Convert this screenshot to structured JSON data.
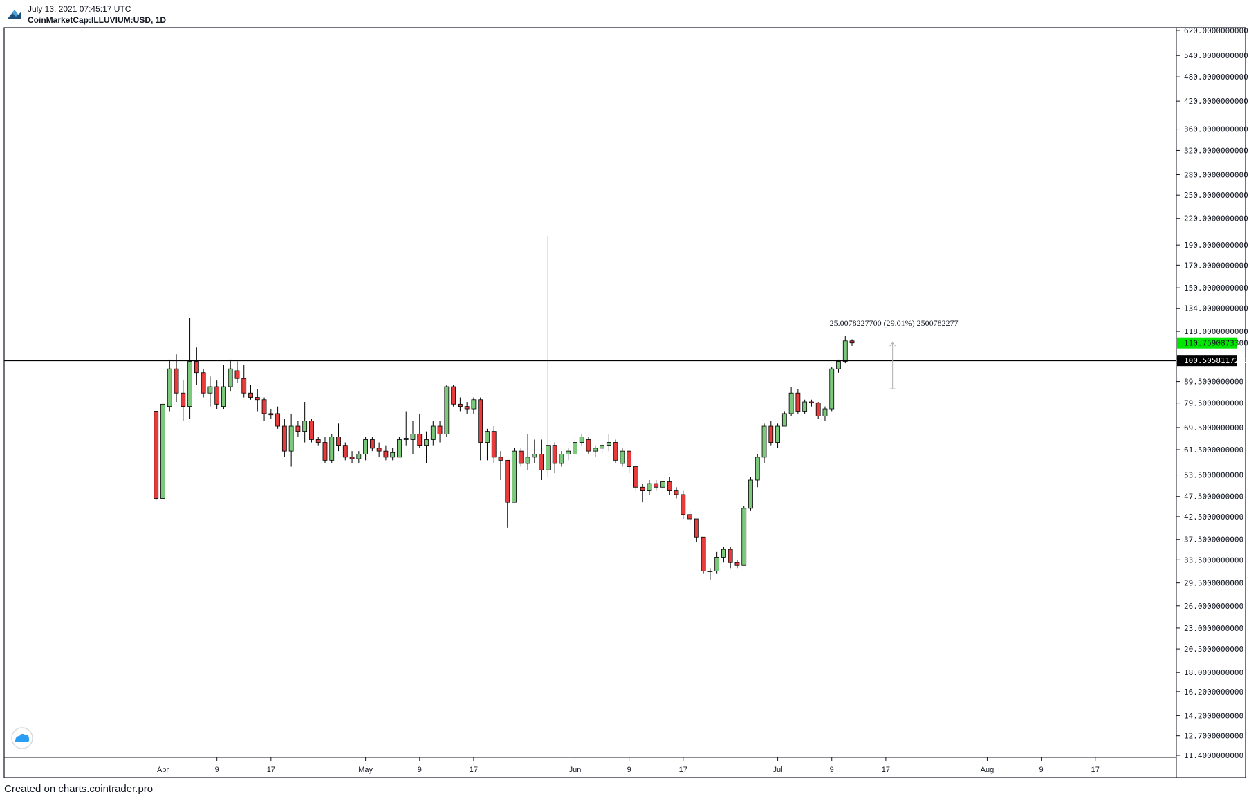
{
  "header": {
    "timestamp": "July 13, 2021 07:45:17 UTC",
    "symbol": "CoinMarketCap:ILLUVIUM:USD, 1D"
  },
  "footer": {
    "credit": "Created on charts.cointrader.pro"
  },
  "colors": {
    "up": "#7cc87c",
    "down": "#e83b3b",
    "hline": "#000000",
    "last_price_bg": "#00e600"
  },
  "chart_data": {
    "type": "candlestick",
    "title": "",
    "xlabel": "",
    "ylabel": "",
    "y_scale": "log",
    "ylim": [
      11.0,
      640.0
    ],
    "x_ticks": [
      {
        "date": "2021-04-01",
        "label": "Apr"
      },
      {
        "date": "2021-04-09",
        "label": "9"
      },
      {
        "date": "2021-04-17",
        "label": "17"
      },
      {
        "date": "2021-05-01",
        "label": "May"
      },
      {
        "date": "2021-05-09",
        "label": "9"
      },
      {
        "date": "2021-05-17",
        "label": "17"
      },
      {
        "date": "2021-06-01",
        "label": "Jun"
      },
      {
        "date": "2021-06-09",
        "label": "9"
      },
      {
        "date": "2021-06-17",
        "label": "17"
      },
      {
        "date": "2021-07-01",
        "label": "Jul"
      },
      {
        "date": "2021-07-09",
        "label": "9"
      },
      {
        "date": "2021-07-17",
        "label": "17"
      },
      {
        "date": "2021-08-01",
        "label": "Aug"
      },
      {
        "date": "2021-08-09",
        "label": "9"
      },
      {
        "date": "2021-08-17",
        "label": "17"
      }
    ],
    "y_ticks": [
      "620.0000000000",
      "540.0000000000",
      "480.0000000000",
      "420.0000000000",
      "360.0000000000",
      "320.0000000000",
      "280.0000000000",
      "250.0000000000",
      "220.0000000000",
      "190.0000000000",
      "170.0000000000",
      "150.0000000000",
      "134.0000000000",
      "118.0000000000",
      "89.5000000000",
      "79.5000000000",
      "69.5000000000",
      "61.5000000000",
      "53.5000000000",
      "47.5000000000",
      "42.5000000000",
      "37.5000000000",
      "33.5000000000",
      "29.5000000000",
      "26.0000000000",
      "23.0000000000",
      "20.5000000000",
      "18.0000000000",
      "16.2000000000",
      "14.2000000000",
      "12.7000000000",
      "11.4000000000"
    ],
    "price_tags": [
      {
        "value": "110.7590873300",
        "style": "last"
      },
      {
        "value": "100.5058117200",
        "style": "line"
      }
    ],
    "horizontal_line": 100.50581172,
    "measure": {
      "label": "25.0078227700 (29.01%) 2500782277",
      "from": {
        "date": "2021-07-18",
        "price": 86.0
      },
      "to": {
        "date": "2021-07-18",
        "price": 111.0
      }
    },
    "candles": [
      {
        "date": "2021-03-31",
        "o": 76.0,
        "h": 76.0,
        "l": 46.5,
        "c": 47.0
      },
      {
        "date": "2021-04-01",
        "o": 47.0,
        "h": 80.0,
        "l": 46.0,
        "c": 79.0
      },
      {
        "date": "2021-04-02",
        "o": 78.0,
        "h": 101.0,
        "l": 76.0,
        "c": 96.0
      },
      {
        "date": "2021-04-03",
        "o": 96.0,
        "h": 104.0,
        "l": 80.0,
        "c": 84.0
      },
      {
        "date": "2021-04-04",
        "o": 84.0,
        "h": 90.0,
        "l": 72.0,
        "c": 78.0
      },
      {
        "date": "2021-04-05",
        "o": 78.0,
        "h": 127.0,
        "l": 73.0,
        "c": 100.0
      },
      {
        "date": "2021-04-06",
        "o": 100.0,
        "h": 108.0,
        "l": 88.0,
        "c": 94.0
      },
      {
        "date": "2021-04-07",
        "o": 94.0,
        "h": 96.0,
        "l": 82.0,
        "c": 84.0
      },
      {
        "date": "2021-04-08",
        "o": 84.0,
        "h": 92.0,
        "l": 78.0,
        "c": 87.0
      },
      {
        "date": "2021-04-09",
        "o": 87.0,
        "h": 90.0,
        "l": 77.0,
        "c": 79.0
      },
      {
        "date": "2021-04-10",
        "o": 78.0,
        "h": 98.0,
        "l": 77.0,
        "c": 87.0
      },
      {
        "date": "2021-04-11",
        "o": 87.0,
        "h": 101.0,
        "l": 85.0,
        "c": 96.0
      },
      {
        "date": "2021-04-12",
        "o": 95.0,
        "h": 100.0,
        "l": 89.0,
        "c": 91.0
      },
      {
        "date": "2021-04-13",
        "o": 91.0,
        "h": 98.0,
        "l": 82.0,
        "c": 84.0
      },
      {
        "date": "2021-04-14",
        "o": 84.0,
        "h": 88.0,
        "l": 81.0,
        "c": 82.0
      },
      {
        "date": "2021-04-15",
        "o": 82.0,
        "h": 86.0,
        "l": 76.0,
        "c": 81.0
      },
      {
        "date": "2021-04-16",
        "o": 81.0,
        "h": 82.0,
        "l": 72.0,
        "c": 75.0
      },
      {
        "date": "2021-04-17",
        "o": 75.0,
        "h": 77.0,
        "l": 73.0,
        "c": 74.5
      },
      {
        "date": "2021-04-18",
        "o": 75.0,
        "h": 78.0,
        "l": 69.0,
        "c": 70.0
      },
      {
        "date": "2021-04-19",
        "o": 70.0,
        "h": 73.0,
        "l": 59.0,
        "c": 61.0
      },
      {
        "date": "2021-04-20",
        "o": 61.0,
        "h": 75.0,
        "l": 56.0,
        "c": 70.0
      },
      {
        "date": "2021-04-21",
        "o": 70.0,
        "h": 72.0,
        "l": 66.0,
        "c": 68.0
      },
      {
        "date": "2021-04-22",
        "o": 68.0,
        "h": 80.0,
        "l": 64.0,
        "c": 72.0
      },
      {
        "date": "2021-04-23",
        "o": 72.0,
        "h": 73.0,
        "l": 64.0,
        "c": 65.0
      },
      {
        "date": "2021-04-24",
        "o": 65.0,
        "h": 66.0,
        "l": 63.0,
        "c": 64.0
      },
      {
        "date": "2021-04-25",
        "o": 64.0,
        "h": 66.0,
        "l": 57.0,
        "c": 58.0
      },
      {
        "date": "2021-04-26",
        "o": 58.0,
        "h": 67.0,
        "l": 57.0,
        "c": 66.0
      },
      {
        "date": "2021-04-27",
        "o": 66.0,
        "h": 71.0,
        "l": 61.0,
        "c": 63.0
      },
      {
        "date": "2021-04-28",
        "o": 63.0,
        "h": 64.0,
        "l": 58.0,
        "c": 59.0
      },
      {
        "date": "2021-04-29",
        "o": 59.0,
        "h": 61.0,
        "l": 57.0,
        "c": 58.5
      },
      {
        "date": "2021-04-30",
        "o": 58.5,
        "h": 61.0,
        "l": 57.0,
        "c": 60.0
      },
      {
        "date": "2021-05-01",
        "o": 60.0,
        "h": 66.0,
        "l": 58.0,
        "c": 65.0
      },
      {
        "date": "2021-05-02",
        "o": 65.0,
        "h": 66.0,
        "l": 61.0,
        "c": 62.0
      },
      {
        "date": "2021-05-03",
        "o": 62.0,
        "h": 64.0,
        "l": 59.0,
        "c": 61.0
      },
      {
        "date": "2021-05-04",
        "o": 61.0,
        "h": 63.0,
        "l": 58.0,
        "c": 59.0
      },
      {
        "date": "2021-05-05",
        "o": 59.0,
        "h": 62.0,
        "l": 58.0,
        "c": 60.5
      },
      {
        "date": "2021-05-06",
        "o": 59.0,
        "h": 66.0,
        "l": 59.0,
        "c": 65.0
      },
      {
        "date": "2021-05-07",
        "o": 65.0,
        "h": 76.0,
        "l": 63.0,
        "c": 65.5
      },
      {
        "date": "2021-05-08",
        "o": 65.0,
        "h": 72.0,
        "l": 60.0,
        "c": 67.0
      },
      {
        "date": "2021-05-09",
        "o": 67.0,
        "h": 75.0,
        "l": 62.0,
        "c": 63.0
      },
      {
        "date": "2021-05-10",
        "o": 63.0,
        "h": 68.0,
        "l": 57.0,
        "c": 65.0
      },
      {
        "date": "2021-05-11",
        "o": 65.0,
        "h": 72.0,
        "l": 63.0,
        "c": 70.0
      },
      {
        "date": "2021-05-12",
        "o": 70.0,
        "h": 72.0,
        "l": 64.0,
        "c": 67.0
      },
      {
        "date": "2021-05-13",
        "o": 67.0,
        "h": 88.0,
        "l": 66.0,
        "c": 87.0
      },
      {
        "date": "2021-05-14",
        "o": 87.0,
        "h": 88.0,
        "l": 78.0,
        "c": 79.0
      },
      {
        "date": "2021-05-15",
        "o": 79.0,
        "h": 82.0,
        "l": 76.0,
        "c": 78.0
      },
      {
        "date": "2021-05-16",
        "o": 78.0,
        "h": 80.0,
        "l": 75.0,
        "c": 77.0
      },
      {
        "date": "2021-05-17",
        "o": 77.0,
        "h": 82.0,
        "l": 75.0,
        "c": 81.0
      },
      {
        "date": "2021-05-18",
        "o": 81.0,
        "h": 82.0,
        "l": 58.0,
        "c": 64.0
      },
      {
        "date": "2021-05-19",
        "o": 64.0,
        "h": 69.0,
        "l": 58.0,
        "c": 68.0
      },
      {
        "date": "2021-05-20",
        "o": 68.0,
        "h": 70.0,
        "l": 57.0,
        "c": 59.0
      },
      {
        "date": "2021-05-21",
        "o": 59.0,
        "h": 61.0,
        "l": 52.0,
        "c": 58.0
      },
      {
        "date": "2021-05-22",
        "o": 58.0,
        "h": 58.0,
        "l": 40.0,
        "c": 46.0
      },
      {
        "date": "2021-05-23",
        "o": 46.0,
        "h": 62.0,
        "l": 46.0,
        "c": 61.0
      },
      {
        "date": "2021-05-24",
        "o": 61.0,
        "h": 62.0,
        "l": 56.0,
        "c": 57.0
      },
      {
        "date": "2021-05-25",
        "o": 57.0,
        "h": 67.0,
        "l": 55.0,
        "c": 59.0
      },
      {
        "date": "2021-05-26",
        "o": 59.0,
        "h": 65.0,
        "l": 57.0,
        "c": 60.0
      },
      {
        "date": "2021-05-27",
        "o": 60.0,
        "h": 65.0,
        "l": 52.0,
        "c": 55.0
      },
      {
        "date": "2021-05-28",
        "o": 55.0,
        "h": 200.0,
        "l": 53.0,
        "c": 63.0
      },
      {
        "date": "2021-05-29",
        "o": 63.0,
        "h": 64.0,
        "l": 54.0,
        "c": 57.0
      },
      {
        "date": "2021-05-30",
        "o": 57.0,
        "h": 61.0,
        "l": 56.0,
        "c": 60.0
      },
      {
        "date": "2021-05-31",
        "o": 60.0,
        "h": 62.0,
        "l": 58.0,
        "c": 61.0
      },
      {
        "date": "2021-06-01",
        "o": 60.0,
        "h": 66.0,
        "l": 59.0,
        "c": 64.0
      },
      {
        "date": "2021-06-02",
        "o": 64.0,
        "h": 67.0,
        "l": 63.0,
        "c": 66.0
      },
      {
        "date": "2021-06-03",
        "o": 65.0,
        "h": 66.0,
        "l": 60.0,
        "c": 61.0
      },
      {
        "date": "2021-06-04",
        "o": 61.0,
        "h": 63.0,
        "l": 59.0,
        "c": 62.0
      },
      {
        "date": "2021-06-05",
        "o": 62.0,
        "h": 64.0,
        "l": 60.0,
        "c": 63.0
      },
      {
        "date": "2021-06-06",
        "o": 63.0,
        "h": 67.0,
        "l": 61.0,
        "c": 64.0
      },
      {
        "date": "2021-06-07",
        "o": 64.0,
        "h": 65.0,
        "l": 57.0,
        "c": 58.0
      },
      {
        "date": "2021-06-08",
        "o": 57.0,
        "h": 62.0,
        "l": 56.0,
        "c": 61.0
      },
      {
        "date": "2021-06-09",
        "o": 61.0,
        "h": 61.0,
        "l": 54.0,
        "c": 56.0
      },
      {
        "date": "2021-06-10",
        "o": 56.0,
        "h": 56.0,
        "l": 49.0,
        "c": 50.0
      },
      {
        "date": "2021-06-11",
        "o": 50.0,
        "h": 51.0,
        "l": 46.0,
        "c": 49.0
      },
      {
        "date": "2021-06-12",
        "o": 49.0,
        "h": 52.0,
        "l": 48.0,
        "c": 51.0
      },
      {
        "date": "2021-06-13",
        "o": 51.0,
        "h": 52.0,
        "l": 49.0,
        "c": 50.0
      },
      {
        "date": "2021-06-14",
        "o": 50.0,
        "h": 52.0,
        "l": 48.0,
        "c": 51.5
      },
      {
        "date": "2021-06-15",
        "o": 51.5,
        "h": 53.0,
        "l": 48.0,
        "c": 49.0
      },
      {
        "date": "2021-06-16",
        "o": 49.0,
        "h": 50.0,
        "l": 47.0,
        "c": 48.0
      },
      {
        "date": "2021-06-17",
        "o": 48.0,
        "h": 49.0,
        "l": 42.0,
        "c": 43.0
      },
      {
        "date": "2021-06-18",
        "o": 43.0,
        "h": 44.0,
        "l": 41.0,
        "c": 42.0
      },
      {
        "date": "2021-06-19",
        "o": 42.0,
        "h": 42.0,
        "l": 37.0,
        "c": 38.0
      },
      {
        "date": "2021-06-20",
        "o": 38.0,
        "h": 38.0,
        "l": 31.0,
        "c": 31.5
      },
      {
        "date": "2021-06-21",
        "o": 31.5,
        "h": 32.0,
        "l": 30.0,
        "c": 31.5
      },
      {
        "date": "2021-06-22",
        "o": 31.5,
        "h": 35.0,
        "l": 31.0,
        "c": 34.0
      },
      {
        "date": "2021-06-23",
        "o": 34.0,
        "h": 36.0,
        "l": 33.0,
        "c": 35.5
      },
      {
        "date": "2021-06-24",
        "o": 35.5,
        "h": 36.0,
        "l": 32.0,
        "c": 33.0
      },
      {
        "date": "2021-06-25",
        "o": 33.0,
        "h": 33.5,
        "l": 32.0,
        "c": 32.5
      },
      {
        "date": "2021-06-26",
        "o": 32.5,
        "h": 45.0,
        "l": 32.5,
        "c": 44.5
      },
      {
        "date": "2021-06-27",
        "o": 44.5,
        "h": 53.0,
        "l": 44.0,
        "c": 52.0
      },
      {
        "date": "2021-06-28",
        "o": 52.0,
        "h": 60.0,
        "l": 50.0,
        "c": 59.0
      },
      {
        "date": "2021-06-29",
        "o": 59.0,
        "h": 71.0,
        "l": 57.0,
        "c": 70.0
      },
      {
        "date": "2021-06-30",
        "o": 70.0,
        "h": 72.0,
        "l": 63.0,
        "c": 64.0
      },
      {
        "date": "2021-07-01",
        "o": 64.0,
        "h": 71.0,
        "l": 62.0,
        "c": 70.0
      },
      {
        "date": "2021-07-02",
        "o": 70.0,
        "h": 76.0,
        "l": 70.0,
        "c": 75.0
      },
      {
        "date": "2021-07-03",
        "o": 75.0,
        "h": 87.0,
        "l": 74.0,
        "c": 84.0
      },
      {
        "date": "2021-07-04",
        "o": 84.0,
        "h": 86.0,
        "l": 75.0,
        "c": 76.0
      },
      {
        "date": "2021-07-05",
        "o": 76.0,
        "h": 81.0,
        "l": 75.0,
        "c": 80.0
      },
      {
        "date": "2021-07-06",
        "o": 80.0,
        "h": 81.0,
        "l": 78.0,
        "c": 79.5
      },
      {
        "date": "2021-07-07",
        "o": 79.5,
        "h": 80.0,
        "l": 73.0,
        "c": 74.0
      },
      {
        "date": "2021-07-08",
        "o": 74.0,
        "h": 78.0,
        "l": 72.0,
        "c": 77.0
      },
      {
        "date": "2021-07-09",
        "o": 77.0,
        "h": 97.0,
        "l": 76.0,
        "c": 96.0
      },
      {
        "date": "2021-07-10",
        "o": 96.0,
        "h": 101.0,
        "l": 94.0,
        "c": 100.0
      },
      {
        "date": "2021-07-11",
        "o": 100.0,
        "h": 115.0,
        "l": 99.0,
        "c": 112.0
      },
      {
        "date": "2021-07-12",
        "o": 112.0,
        "h": 113.0,
        "l": 109.0,
        "c": 110.76
      }
    ]
  }
}
